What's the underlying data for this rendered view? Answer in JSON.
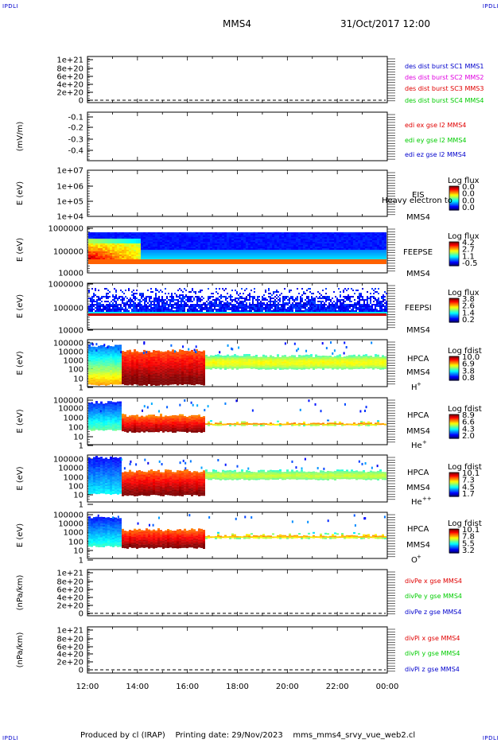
{
  "header": {
    "left_logo": "IPDLI",
    "right_logo": "IPDLI",
    "spacecraft": "MMS4",
    "datetime": "31/Oct/2017 12:00"
  },
  "footer": {
    "left_logo": "IPDLI",
    "right_logo": "IPDLI",
    "credit": "Produced by cl (IRAP)    Printing date: 29/Nov/2023    mms_mms4_srvy_vue_web2.cl"
  },
  "colors": {
    "red": "#e00000",
    "green": "#00cc00",
    "blue": "#0000cc",
    "magenta": "#e000e0",
    "logo": "#0000cc"
  },
  "chart_data": [
    {
      "type": "line",
      "ylabel": "",
      "y_ticks": [
        "1e+21",
        "8e+20",
        "6e+20",
        "4e+20",
        "2e+20",
        "0"
      ],
      "ylim": [
        0,
        1.1e+21
      ],
      "legend": [
        {
          "label": "des dist burst SC1 MMS1",
          "color": "#0000cc"
        },
        {
          "label": "des dist burst SC2 MMS2",
          "color": "#e000e0"
        },
        {
          "label": "des dist burst SC3 MMS3",
          "color": "#e00000"
        },
        {
          "label": "des dist burst SC4 MMS4",
          "color": "#00cc00"
        }
      ]
    },
    {
      "type": "line",
      "ylabel": "(mV/m)",
      "y_ticks": [
        "-0.1",
        "-0.2",
        "-0.3",
        "-0.4"
      ],
      "legend": [
        {
          "label": "edi ex gse l2 MMS4",
          "color": "#e00000"
        },
        {
          "label": "edi ey gse l2 MMS4",
          "color": "#00cc00"
        },
        {
          "label": "edi ez gse l2 MMS4",
          "color": "#0000cc"
        }
      ]
    },
    {
      "type": "heatmap",
      "ylabel": "E (eV)",
      "y_ticks": [
        "1e+07",
        "1e+06",
        "1e+05",
        "1e+04"
      ],
      "instrument": [
        "EIS",
        "MMS4"
      ],
      "overlay": "Heavy electron to",
      "colorbar_title": "Log flux",
      "colorbar_ticks": [
        "0.0",
        "0.0",
        "0.0",
        "0.0"
      ]
    },
    {
      "type": "heatmap",
      "ylabel": "E (eV)",
      "y_ticks": [
        "1000000",
        "100000",
        "10000"
      ],
      "instrument": [
        "FEEPSE",
        "MMS4"
      ],
      "colorbar_title": "Log flux",
      "colorbar_ticks": [
        "4.2",
        "2.7",
        "1.1",
        "-0.5"
      ]
    },
    {
      "type": "heatmap",
      "ylabel": "E (eV)",
      "y_ticks": [
        "1000000",
        "100000",
        "10000"
      ],
      "instrument": [
        "FEEPSI",
        "MMS4"
      ],
      "colorbar_title": "Log flux",
      "colorbar_ticks": [
        "3.8",
        "2.6",
        "1.4",
        "0.2"
      ]
    },
    {
      "type": "heatmap",
      "ylabel": "E (eV)",
      "y_ticks": [
        "100000",
        "10000",
        "1000",
        "100",
        "10",
        "1"
      ],
      "instrument": [
        "HPCA",
        "MMS4"
      ],
      "species": "H",
      "charge": "+",
      "colorbar_title": "Log fdist",
      "colorbar_ticks": [
        "10.0",
        "6.9",
        "3.8",
        "0.8"
      ]
    },
    {
      "type": "heatmap",
      "ylabel": "E (eV)",
      "y_ticks": [
        "100000",
        "10000",
        "1000",
        "100",
        "10",
        "1"
      ],
      "instrument": [
        "HPCA",
        "MMS4"
      ],
      "species": "He",
      "charge": "+",
      "colorbar_title": "Log fdist",
      "colorbar_ticks": [
        "8.9",
        "6.6",
        "4.3",
        "2.0"
      ]
    },
    {
      "type": "heatmap",
      "ylabel": "E (eV)",
      "y_ticks": [
        "100000",
        "10000",
        "1000",
        "100",
        "10",
        "1"
      ],
      "instrument": [
        "HPCA",
        "MMS4"
      ],
      "species": "He",
      "charge": "++",
      "colorbar_title": "Log fdist",
      "colorbar_ticks": [
        "10.1",
        "7.3",
        "4.5",
        "1.7"
      ]
    },
    {
      "type": "heatmap",
      "ylabel": "E (eV)",
      "y_ticks": [
        "100000",
        "10000",
        "1000",
        "100",
        "10",
        "1"
      ],
      "instrument": [
        "HPCA",
        "MMS4"
      ],
      "species": "O",
      "charge": "+",
      "colorbar_title": "Log fdist",
      "colorbar_ticks": [
        "10.1",
        "7.8",
        "5.5",
        "3.2"
      ]
    },
    {
      "type": "line",
      "ylabel": "(nPa/km)",
      "y_ticks": [
        "1e+21",
        "8e+20",
        "6e+20",
        "4e+20",
        "2e+20",
        "0"
      ],
      "ylim": [
        0,
        1.1e+21
      ],
      "legend": [
        {
          "label": "divPe x gse MMS4",
          "color": "#e00000"
        },
        {
          "label": "divPe y gse MMS4",
          "color": "#00cc00"
        },
        {
          "label": "divPe z gse MMS4",
          "color": "#0000cc"
        }
      ]
    },
    {
      "type": "line",
      "ylabel": "(nPa/km)",
      "y_ticks": [
        "1e+21",
        "8e+20",
        "6e+20",
        "4e+20",
        "2e+20",
        "0"
      ],
      "ylim": [
        0,
        1.1e+21
      ],
      "legend": [
        {
          "label": "divPi x gse MMS4",
          "color": "#e00000"
        },
        {
          "label": "divPi y gse MMS4",
          "color": "#00cc00"
        },
        {
          "label": "divPi z gse MMS4",
          "color": "#0000cc"
        }
      ]
    }
  ],
  "time_axis": {
    "ticks": [
      "12:00",
      "14:00",
      "16:00",
      "18:00",
      "20:00",
      "22:00",
      "00:00"
    ]
  }
}
